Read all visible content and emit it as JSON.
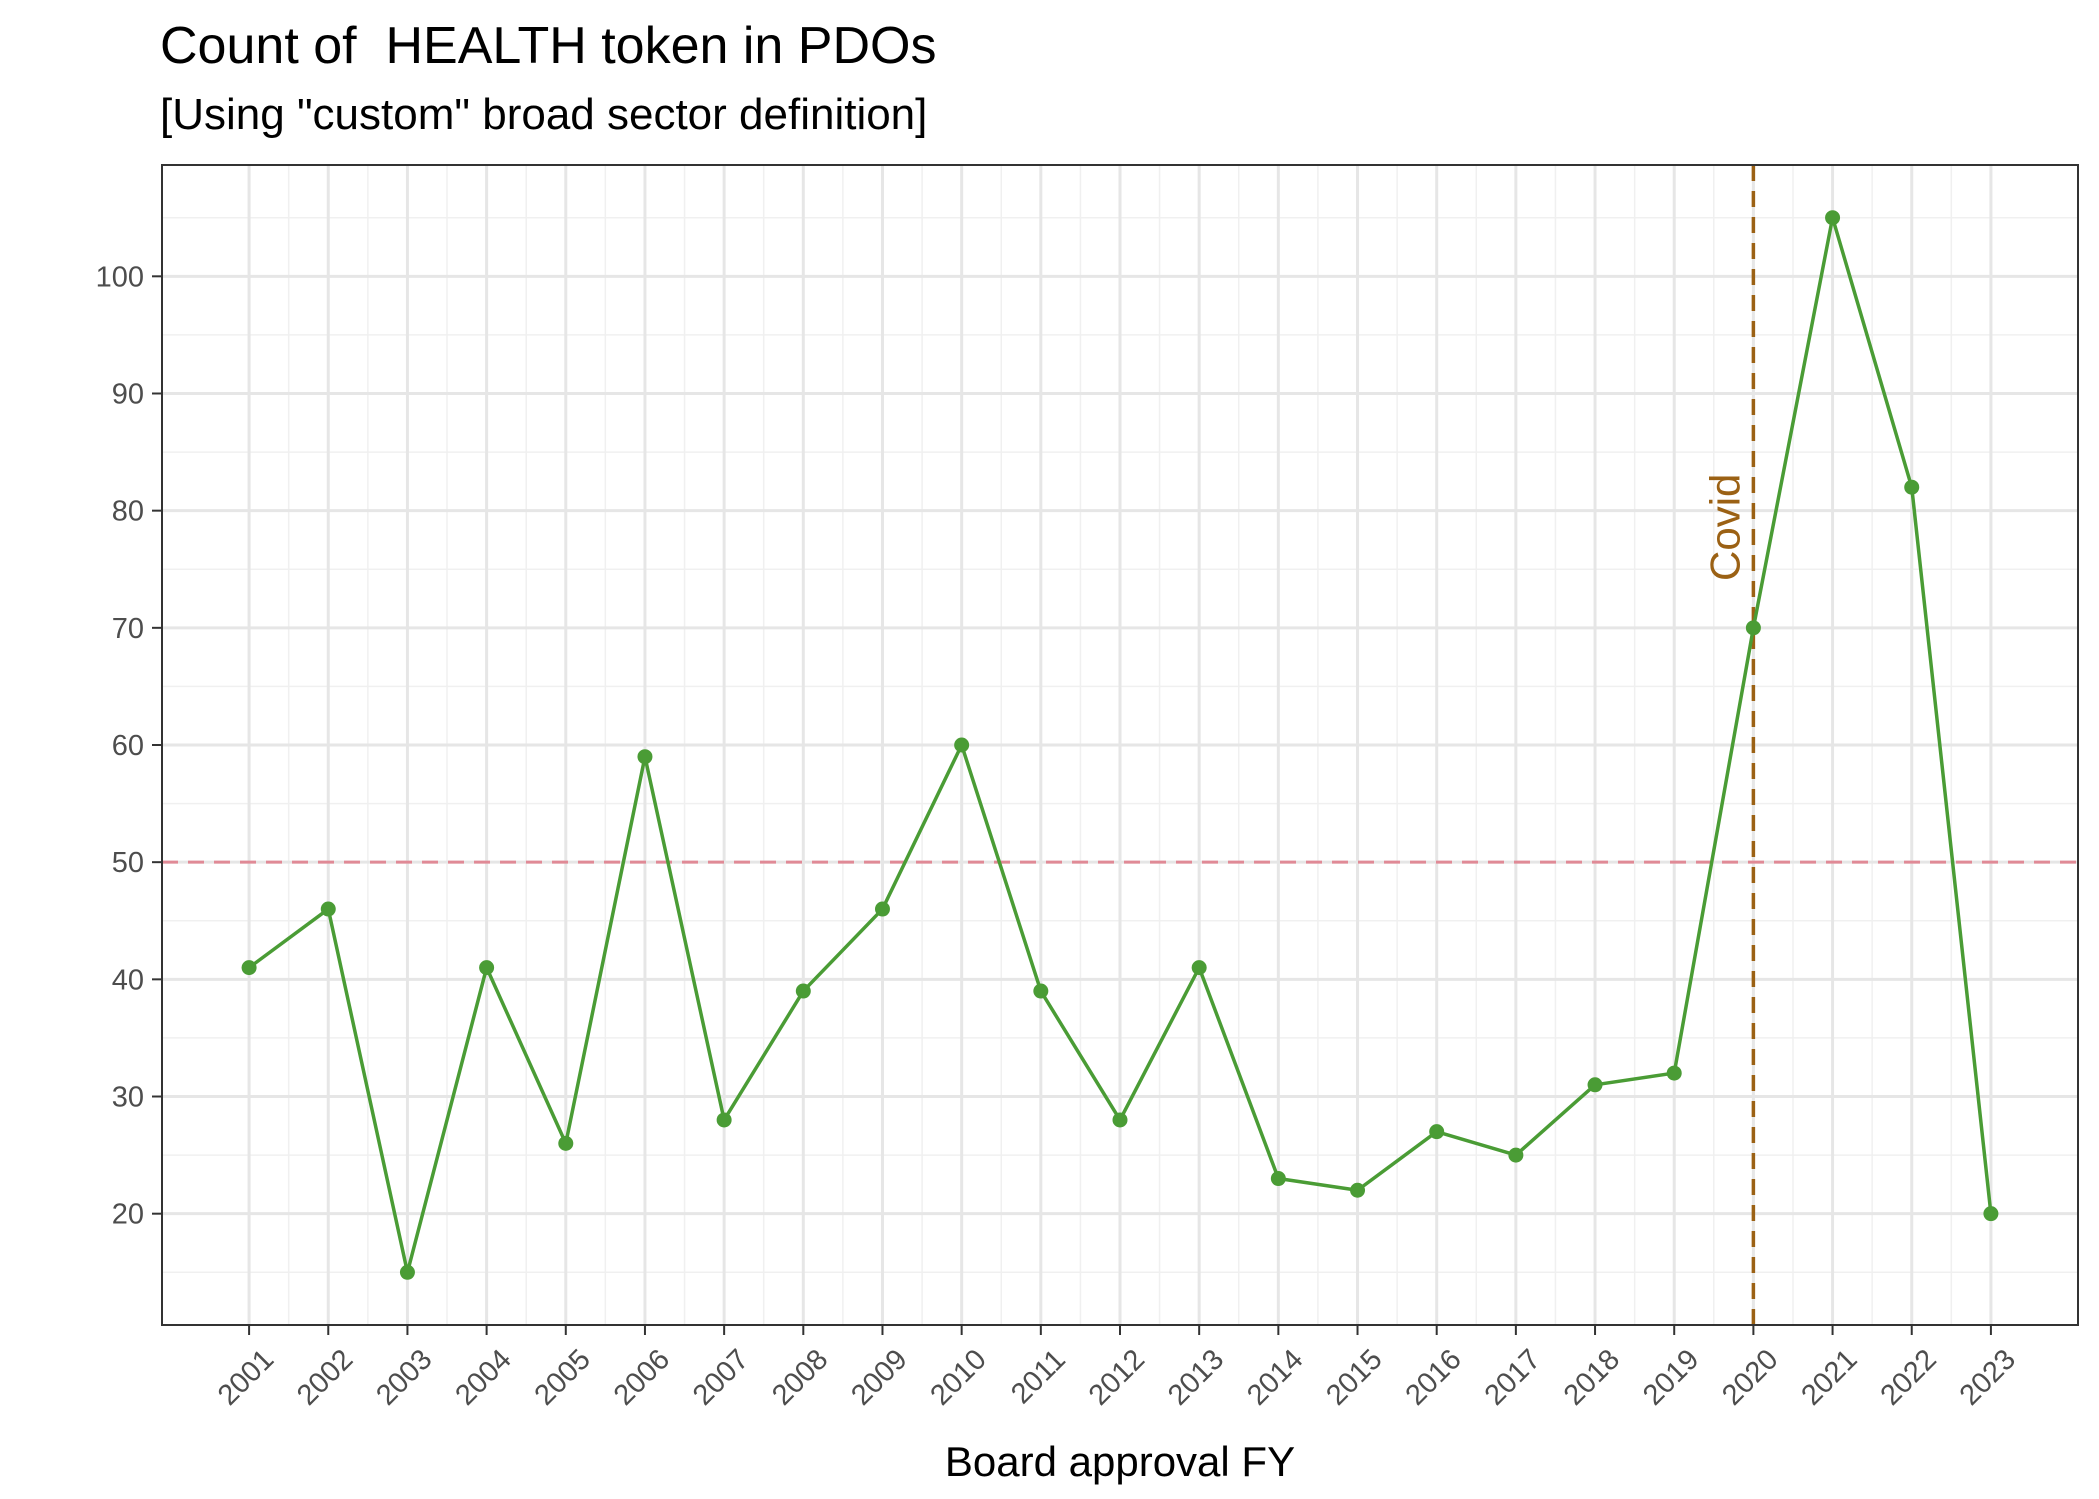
{
  "chart_data": {
    "type": "line",
    "title": "Count of  HEALTH token in PDOs",
    "subtitle": "[Using \"custom\" broad sector definition]",
    "xlabel": "Board approval FY",
    "ylabel": "",
    "x": [
      2001,
      2002,
      2003,
      2004,
      2005,
      2006,
      2007,
      2008,
      2009,
      2010,
      2011,
      2012,
      2013,
      2014,
      2015,
      2016,
      2017,
      2018,
      2019,
      2020,
      2021,
      2022,
      2023
    ],
    "x_tick_labels": [
      "2001",
      "2002",
      "2003",
      "2004",
      "2005",
      "2006",
      "2007",
      "2008",
      "2009",
      "2010",
      "2011",
      "2012",
      "2013",
      "2014",
      "2015",
      "2016",
      "2017",
      "2018",
      "2019",
      "2020",
      "2021",
      "2022",
      "2023"
    ],
    "series": [
      {
        "values": [
          41,
          46,
          15,
          41,
          26,
          59,
          28,
          39,
          46,
          60,
          39,
          28,
          41,
          23,
          22,
          27,
          25,
          31,
          32,
          70,
          105,
          82,
          20
        ]
      }
    ],
    "ylim": [
      10.5,
      109.5
    ],
    "xlim": [
      1999.9,
      2024.1
    ],
    "y_ticks": [
      20,
      30,
      40,
      50,
      60,
      70,
      80,
      90,
      100
    ],
    "y_tick_labels": [
      "20",
      "30",
      "40",
      "50",
      "60",
      "70",
      "80",
      "90",
      "100"
    ],
    "reference_lines": [
      {
        "orientation": "horizontal",
        "value": 50,
        "color": "#e08a96"
      },
      {
        "orientation": "vertical",
        "value": 2020,
        "label": "Covid",
        "color": "#9b6114"
      }
    ],
    "grid": true,
    "legend": "none",
    "colors": {
      "series": "#4a9c35",
      "hline": "#e08a96",
      "vline": "#9b6114",
      "vline_label": "#9b6114"
    }
  }
}
